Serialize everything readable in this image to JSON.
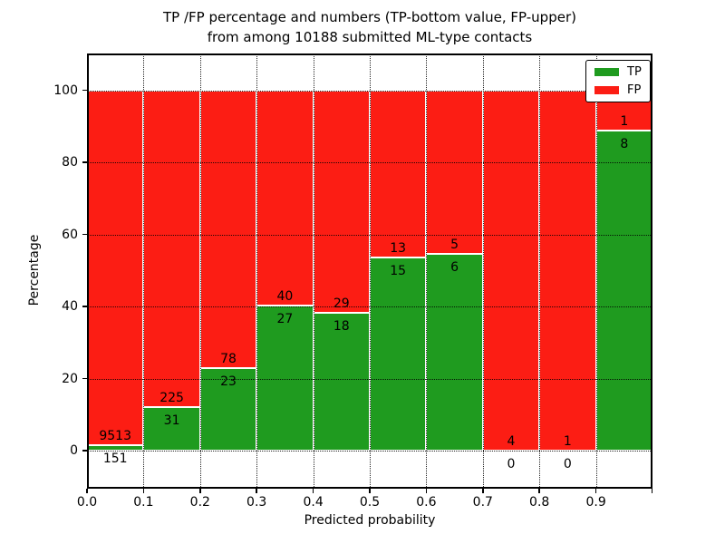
{
  "figure": {
    "title_line1": "TP /FP percentage and numbers (TP-bottom value, FP-upper)",
    "title_line2": "from among 10188 submitted ML-type contacts",
    "xlabel": "Predicted probability",
    "ylabel": "Percentage"
  },
  "chart_data": {
    "type": "bar",
    "variant": "stacked-percentage-histogram",
    "title": "TP /FP percentage and numbers (TP-bottom value, FP-upper)\nfrom among 10188 submitted ML-type contacts",
    "xlabel": "Predicted probability",
    "ylabel": "Percentage",
    "total_submitted": 10188,
    "bar_label_note": "TP count shown below segment boundary, FP count shown above",
    "categories": [
      "0.0-0.1",
      "0.1-0.2",
      "0.2-0.3",
      "0.3-0.4",
      "0.4-0.5",
      "0.5-0.6",
      "0.6-0.7",
      "0.7-0.8",
      "0.8-0.9",
      "0.9-1.0"
    ],
    "series": [
      {
        "name": "TP",
        "color": "#1f9b1f",
        "values": [
          151,
          31,
          23,
          27,
          18,
          15,
          6,
          0,
          0,
          8
        ]
      },
      {
        "name": "FP",
        "color": "#fc1d14",
        "values": [
          9513,
          225,
          78,
          40,
          29,
          13,
          5,
          4,
          1,
          1
        ]
      }
    ],
    "tp_percent_per_bin": [
      1.56,
      12.11,
      22.77,
      40.3,
      38.3,
      53.57,
      54.55,
      0.0,
      0.0,
      88.89
    ],
    "xticks": [
      "0.0",
      "0.1",
      "0.2",
      "0.3",
      "0.4",
      "0.5",
      "0.6",
      "0.7",
      "0.8",
      "0.9"
    ],
    "yticks": [
      0,
      20,
      40,
      60,
      80,
      100
    ],
    "xlim": [
      0.0,
      1.0
    ],
    "ylim": [
      -10.6,
      110.2
    ],
    "grid": true,
    "legend": {
      "position": "upper right",
      "entries": [
        "TP",
        "FP"
      ]
    }
  }
}
